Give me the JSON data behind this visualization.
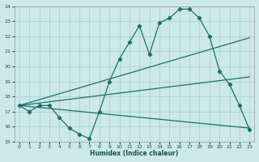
{
  "xlabel": "Humidex (Indice chaleur)",
  "ylabel": "",
  "bg_color": "#cce8e8",
  "grid_color": "#aacfcf",
  "line_color": "#1a7068",
  "xlim": [
    -0.5,
    23.5
  ],
  "ylim": [
    15,
    24
  ],
  "yticks": [
    15,
    16,
    17,
    18,
    19,
    20,
    21,
    22,
    23,
    24
  ],
  "xticks": [
    0,
    1,
    2,
    3,
    4,
    5,
    6,
    7,
    8,
    9,
    10,
    11,
    12,
    13,
    14,
    15,
    16,
    17,
    18,
    19,
    20,
    21,
    22,
    23
  ],
  "lines": [
    {
      "x": [
        0,
        1,
        2,
        3,
        4,
        5,
        6,
        7,
        8,
        9,
        10,
        11,
        12,
        13,
        14,
        15,
        16,
        17,
        18,
        19,
        20,
        21,
        22,
        23
      ],
      "y": [
        17.4,
        17.0,
        17.4,
        17.4,
        16.6,
        15.9,
        15.5,
        15.2,
        17.0,
        19.0,
        20.5,
        21.6,
        22.7,
        20.8,
        22.9,
        23.2,
        23.8,
        23.8,
        23.2,
        22.0,
        19.7,
        18.8,
        17.4,
        15.8
      ],
      "marker": "D",
      "markersize": 2.2,
      "linewidth": 0.9
    },
    {
      "x": [
        0,
        23
      ],
      "y": [
        17.4,
        21.9
      ],
      "marker": null,
      "linewidth": 0.9
    },
    {
      "x": [
        0,
        23
      ],
      "y": [
        17.4,
        19.3
      ],
      "marker": null,
      "linewidth": 0.9
    },
    {
      "x": [
        0,
        23
      ],
      "y": [
        17.4,
        15.9
      ],
      "marker": null,
      "linewidth": 0.9
    }
  ]
}
